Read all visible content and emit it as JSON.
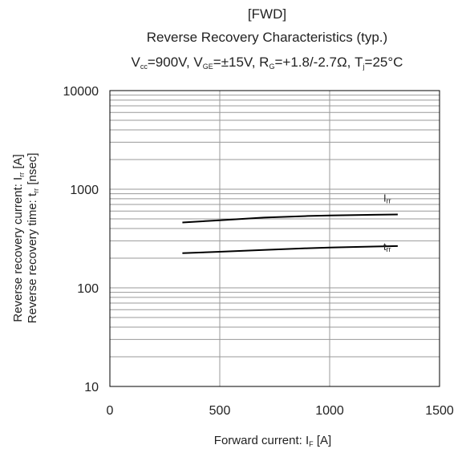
{
  "chart_data": {
    "type": "line",
    "title": "[FWD]",
    "subtitle": "Reverse Recovery Characteristics (typ.)",
    "conditions": {
      "vcc_main": "V",
      "vcc_sub": "cc",
      "vcc_value": "=900V, ",
      "vge_main": "V",
      "vge_sub": "GE",
      "vge_value": "=±15V, ",
      "rg_main": "R",
      "rg_sub": "G",
      "rg_value": "=+1.8/-2.7Ω, ",
      "tj_main": "T",
      "tj_sub": "j",
      "tj_value": "=25°C"
    },
    "xlabel": {
      "main": "Forward current: I",
      "sub": "F",
      "unit": " [A]"
    },
    "ylabel_1": {
      "main": "Reverse recovery current: I",
      "sub": "rr",
      "unit": " [A]"
    },
    "ylabel_2": {
      "main": "Reverse recovery time: t",
      "sub": "rr",
      "unit": " [nsec]"
    },
    "xlim": [
      0,
      1500
    ],
    "ylim": [
      10,
      10000
    ],
    "yscale": "log",
    "grid": true,
    "x_ticks": [
      "0",
      "500",
      "1000",
      "1500"
    ],
    "y_ticks": [
      "10",
      "100",
      "1000",
      "10000"
    ],
    "series": [
      {
        "name_main": "I",
        "name_sub": "rr",
        "color": "#000000",
        "x": [
          330,
          500,
          700,
          900,
          1000,
          1200,
          1310
        ],
        "y": [
          460,
          485,
          515,
          535,
          542,
          550,
          555
        ]
      },
      {
        "name_main": "t",
        "name_sub": "rr",
        "color": "#000000",
        "x": [
          330,
          500,
          700,
          900,
          1000,
          1200,
          1310
        ],
        "y": [
          225,
          232,
          242,
          252,
          256,
          262,
          265
        ]
      }
    ]
  }
}
